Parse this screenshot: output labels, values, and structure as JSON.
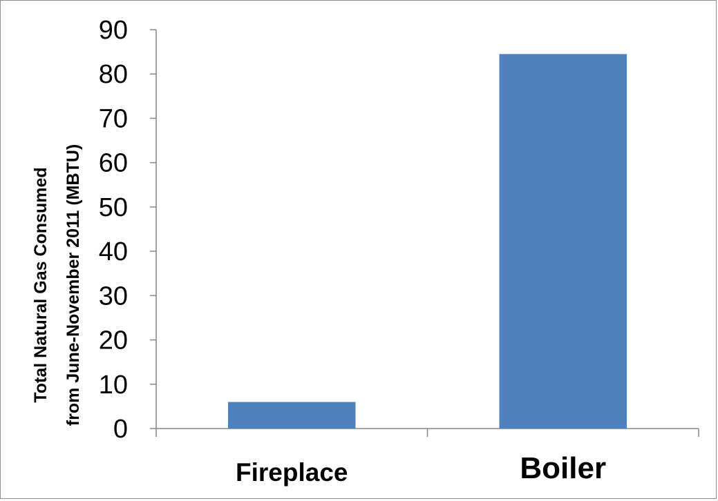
{
  "chart_data": {
    "type": "bar",
    "categories": [
      "Fireplace",
      "Boiler"
    ],
    "values": [
      6,
      84.5
    ],
    "ylabel_lines": [
      "Total Natural Gas Consumed",
      "from June-November 2011 (MBTU)"
    ],
    "xlabel": "",
    "ylim": [
      0,
      90
    ],
    "yticks": [
      0,
      10,
      20,
      30,
      40,
      50,
      60,
      70,
      80,
      90
    ],
    "grid": false,
    "legend": "none",
    "bar_color": "#4f81bd",
    "axis_color": "#868686"
  }
}
